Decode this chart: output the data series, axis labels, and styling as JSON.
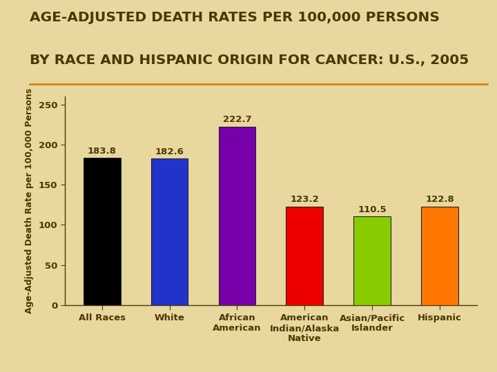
{
  "title_line1": "AGE-ADJUSTED DEATH RATES PER 100,000 PERSONS",
  "title_line2": "BY RACE AND HISPANIC ORIGIN FOR CANCER: U.S., 2005",
  "categories": [
    "All Races",
    "White",
    "African\nAmerican",
    "American\nIndian/Alaska\nNative",
    "Asian/Pacific\nIslander",
    "Hispanic"
  ],
  "values": [
    183.8,
    182.6,
    222.7,
    123.2,
    110.5,
    122.8
  ],
  "bar_colors": [
    "#000000",
    "#2233cc",
    "#7700aa",
    "#ee0000",
    "#88cc00",
    "#ff7700"
  ],
  "ylabel": "Age-Adjusted Death Rate per 100,000 Persons",
  "ylim": [
    0,
    260
  ],
  "yticks": [
    0,
    50,
    100,
    150,
    200,
    250
  ],
  "background_color": "#e8d8a0",
  "title_color": "#4a3800",
  "label_color": "#4a3800",
  "value_label_color": "#4a3800",
  "title_fontsize": 14.5,
  "ylabel_fontsize": 9,
  "tick_label_fontsize": 9.5,
  "value_fontsize": 9.5,
  "separator_line_color": "#cc8800",
  "bar_edge_color": "#222222"
}
